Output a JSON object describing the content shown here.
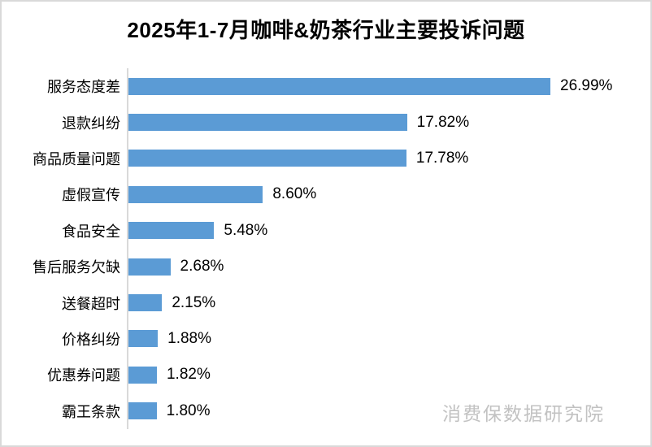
{
  "title": "2025年1-7月咖啡&奶茶行业主要投诉问题",
  "watermark": "消费保数据研究院",
  "colors": {
    "bar": "#5B9BD5",
    "axis": "#D9D9D9",
    "watermark": "#C2C2C2",
    "title_text": "#000000"
  },
  "chart_data": {
    "type": "bar",
    "orientation": "horizontal",
    "title": "2025年1-7月咖啡&奶茶行业主要投诉问题",
    "categories": [
      "服务态度差",
      "退款纠纷",
      "商品质量问题",
      "虚假宣传",
      "食品安全",
      "售后服务欠缺",
      "送餐超时",
      "价格纠纷",
      "优惠券问题",
      "霸王条款"
    ],
    "values": [
      26.99,
      17.82,
      17.78,
      8.6,
      5.48,
      2.68,
      2.15,
      1.88,
      1.82,
      1.8
    ],
    "value_labels": [
      "26.99%",
      "17.82%",
      "17.78%",
      "8.60%",
      "5.48%",
      "2.68%",
      "2.15%",
      "1.88%",
      "1.82%",
      "1.80%"
    ],
    "xlabel": "",
    "ylabel": "",
    "xlim": [
      0,
      30
    ],
    "grid": false,
    "legend_position": "none",
    "data_labels": true
  }
}
